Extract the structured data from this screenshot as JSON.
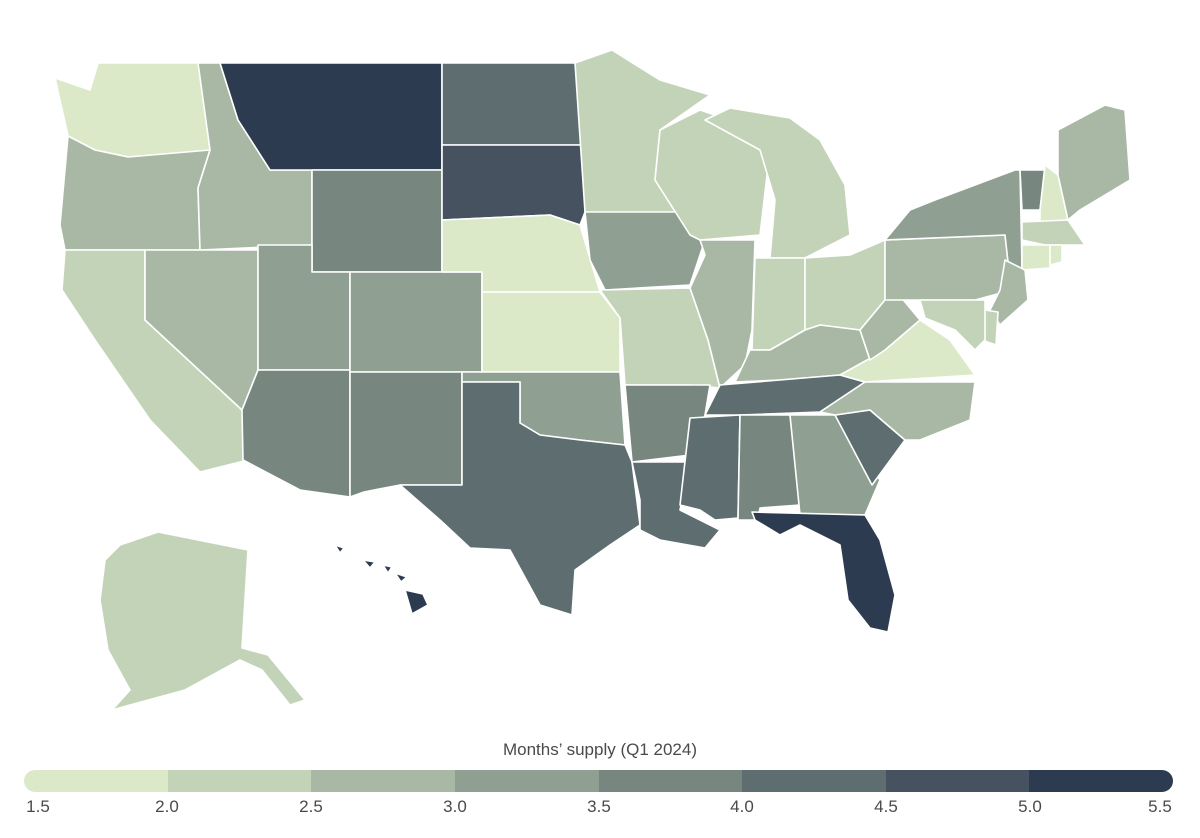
{
  "legend": {
    "title": "Months’ supply (Q1 2024)",
    "ticks": [
      "1.5",
      "2.0",
      "2.5",
      "3.0",
      "3.5",
      "4.0",
      "4.5",
      "5.0",
      "5.5"
    ],
    "colors": [
      "#dce9c9",
      "#c3d3b8",
      "#a9b8a5",
      "#8f9f92",
      "#778780",
      "#5e6e70",
      "#46525f",
      "#2c3b4f"
    ]
  },
  "states": [
    {
      "code": "WA",
      "bin": 0
    },
    {
      "code": "OR",
      "bin": 2
    },
    {
      "code": "CA",
      "bin": 1
    },
    {
      "code": "ID",
      "bin": 2
    },
    {
      "code": "NV",
      "bin": 2
    },
    {
      "code": "MT",
      "bin": 7
    },
    {
      "code": "WY",
      "bin": 4
    },
    {
      "code": "UT",
      "bin": 3
    },
    {
      "code": "AZ",
      "bin": 4
    },
    {
      "code": "CO",
      "bin": 3
    },
    {
      "code": "NM",
      "bin": 4
    },
    {
      "code": "ND",
      "bin": 5
    },
    {
      "code": "SD",
      "bin": 6
    },
    {
      "code": "NE",
      "bin": 0
    },
    {
      "code": "KS",
      "bin": 0
    },
    {
      "code": "OK",
      "bin": 3
    },
    {
      "code": "TX",
      "bin": 5
    },
    {
      "code": "MN",
      "bin": 1
    },
    {
      "code": "IA",
      "bin": 3
    },
    {
      "code": "MO",
      "bin": 1
    },
    {
      "code": "AR",
      "bin": 4
    },
    {
      "code": "LA",
      "bin": 5
    },
    {
      "code": "WI",
      "bin": 1
    },
    {
      "code": "IL",
      "bin": 2
    },
    {
      "code": "MI",
      "bin": 1
    },
    {
      "code": "IN",
      "bin": 1
    },
    {
      "code": "OH",
      "bin": 1
    },
    {
      "code": "KY",
      "bin": 2
    },
    {
      "code": "TN",
      "bin": 5
    },
    {
      "code": "MS",
      "bin": 5
    },
    {
      "code": "AL",
      "bin": 4
    },
    {
      "code": "GA",
      "bin": 3
    },
    {
      "code": "FL",
      "bin": 7
    },
    {
      "code": "SC",
      "bin": 5
    },
    {
      "code": "NC",
      "bin": 2
    },
    {
      "code": "VA",
      "bin": 0
    },
    {
      "code": "WV",
      "bin": 2
    },
    {
      "code": "PA",
      "bin": 2
    },
    {
      "code": "NY",
      "bin": 3
    },
    {
      "code": "VT",
      "bin": 4
    },
    {
      "code": "NH",
      "bin": 0
    },
    {
      "code": "ME",
      "bin": 2
    },
    {
      "code": "MA",
      "bin": 1
    },
    {
      "code": "CT",
      "bin": 0
    },
    {
      "code": "RI",
      "bin": 0
    },
    {
      "code": "NJ",
      "bin": 2
    },
    {
      "code": "DE",
      "bin": 1
    },
    {
      "code": "MD",
      "bin": 1
    },
    {
      "code": "AK",
      "bin": 1
    },
    {
      "code": "HI",
      "bin": 7
    }
  ]
}
